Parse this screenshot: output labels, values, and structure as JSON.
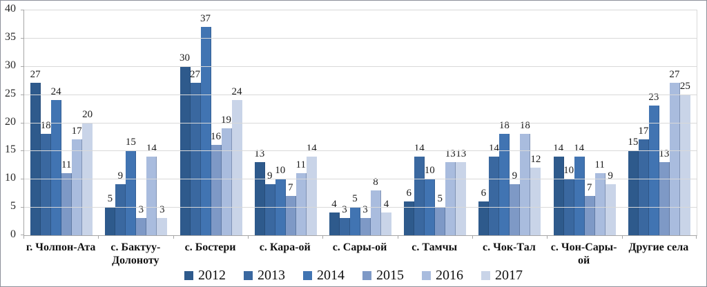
{
  "chart_data": {
    "type": "bar",
    "title": "",
    "xlabel": "",
    "ylabel": "",
    "categories": [
      "г. Чолпон-Ата",
      "с. Бактуу-\nДолоноту",
      "с. Бостери",
      "с. Кара-ой",
      "с. Сары-ой",
      "с. Тамчы",
      "с. Чок-Тал",
      "с. Чон-Сары-ой",
      "Другие села"
    ],
    "series": [
      {
        "name": "2012",
        "color": "#2e5a8c",
        "values": [
          27,
          5,
          30,
          13,
          4,
          6,
          6,
          14,
          15
        ]
      },
      {
        "name": "2013",
        "color": "#3a68a0",
        "values": [
          18,
          9,
          27,
          9,
          3,
          14,
          14,
          10,
          17
        ]
      },
      {
        "name": "2014",
        "color": "#4174b2",
        "values": [
          24,
          15,
          37,
          10,
          5,
          10,
          18,
          14,
          23
        ]
      },
      {
        "name": "2015",
        "color": "#7e99c6",
        "values": [
          11,
          3,
          16,
          7,
          3,
          5,
          9,
          7,
          13
        ]
      },
      {
        "name": "2016",
        "color": "#a9bcde",
        "values": [
          17,
          14,
          19,
          11,
          8,
          13,
          18,
          11,
          27
        ]
      },
      {
        "name": "2017",
        "color": "#c9d4e8",
        "values": [
          20,
          3,
          24,
          14,
          4,
          13,
          12,
          9,
          25
        ]
      }
    ],
    "ylim": [
      0,
      40
    ],
    "yticks": [
      0,
      5,
      10,
      15,
      20,
      25,
      30,
      35,
      40
    ],
    "grid": true,
    "gridline_color": "#d9d9d9",
    "axis_color": "#a6a6a6",
    "data_labels": true,
    "legend_position": "bottom"
  }
}
